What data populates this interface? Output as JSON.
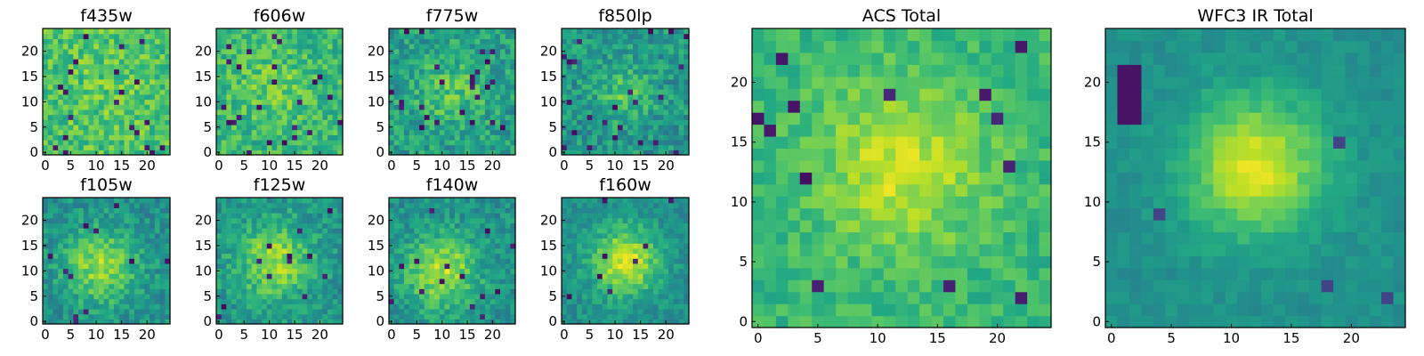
{
  "chart_data": [
    {
      "type": "heatmap",
      "title": "f435w",
      "colormap": "viridis",
      "grid": false,
      "xlim": [
        0,
        24
      ],
      "ylim": [
        0,
        24
      ],
      "xticks": [
        0,
        5,
        10,
        15,
        20
      ],
      "yticks": [
        0,
        5,
        10,
        15,
        20
      ],
      "source_extent_px": 25
    },
    {
      "type": "heatmap",
      "title": "f606w",
      "colormap": "viridis",
      "grid": false,
      "xlim": [
        0,
        24
      ],
      "ylim": [
        0,
        24
      ],
      "xticks": [
        0,
        5,
        10,
        15,
        20
      ],
      "yticks": [
        0,
        5,
        10,
        15,
        20
      ],
      "source_extent_px": 25
    },
    {
      "type": "heatmap",
      "title": "f775w",
      "colormap": "viridis",
      "grid": false,
      "xlim": [
        0,
        24
      ],
      "ylim": [
        0,
        24
      ],
      "xticks": [
        0,
        5,
        10,
        15,
        20
      ],
      "yticks": [
        0,
        5,
        10,
        15,
        20
      ],
      "source_extent_px": 25
    },
    {
      "type": "heatmap",
      "title": "f850lp",
      "colormap": "viridis",
      "grid": false,
      "xlim": [
        0,
        24
      ],
      "ylim": [
        0,
        24
      ],
      "xticks": [
        0,
        5,
        10,
        15,
        20
      ],
      "yticks": [
        0,
        5,
        10,
        15,
        20
      ],
      "source_extent_px": 25
    },
    {
      "type": "heatmap",
      "title": "f105w",
      "colormap": "viridis",
      "grid": false,
      "xlim": [
        0,
        24
      ],
      "ylim": [
        0,
        24
      ],
      "xticks": [
        0,
        5,
        10,
        15,
        20
      ],
      "yticks": [
        0,
        5,
        10,
        15,
        20
      ],
      "source_extent_px": 25
    },
    {
      "type": "heatmap",
      "title": "f125w",
      "colormap": "viridis",
      "grid": false,
      "xlim": [
        0,
        24
      ],
      "ylim": [
        0,
        24
      ],
      "xticks": [
        0,
        5,
        10,
        15,
        20
      ],
      "yticks": [
        0,
        5,
        10,
        15,
        20
      ],
      "source_extent_px": 25
    },
    {
      "type": "heatmap",
      "title": "f140w",
      "colormap": "viridis",
      "grid": false,
      "xlim": [
        0,
        24
      ],
      "ylim": [
        0,
        24
      ],
      "xticks": [
        0,
        5,
        10,
        15,
        20
      ],
      "yticks": [
        0,
        5,
        10,
        15,
        20
      ],
      "source_extent_px": 25
    },
    {
      "type": "heatmap",
      "title": "f160w",
      "colormap": "viridis",
      "grid": false,
      "xlim": [
        0,
        24
      ],
      "ylim": [
        0,
        24
      ],
      "xticks": [
        0,
        5,
        10,
        15,
        20
      ],
      "yticks": [
        0,
        5,
        10,
        15,
        20
      ],
      "source_extent_px": 25
    },
    {
      "type": "heatmap",
      "title": "ACS Total",
      "colormap": "viridis",
      "grid": false,
      "xlim": [
        0,
        24
      ],
      "ylim": [
        0,
        24
      ],
      "xticks": [
        0,
        5,
        10,
        15,
        20
      ],
      "yticks": [
        0,
        5,
        10,
        15,
        20
      ],
      "source_extent_px": 25
    },
    {
      "type": "heatmap",
      "title": "WFC3 IR Total",
      "colormap": "viridis",
      "grid": false,
      "xlim": [
        0,
        24
      ],
      "ylim": [
        0,
        24
      ],
      "xticks": [
        0,
        5,
        10,
        15,
        20
      ],
      "yticks": [
        0,
        5,
        10,
        15,
        20
      ],
      "source_extent_px": 25
    }
  ]
}
